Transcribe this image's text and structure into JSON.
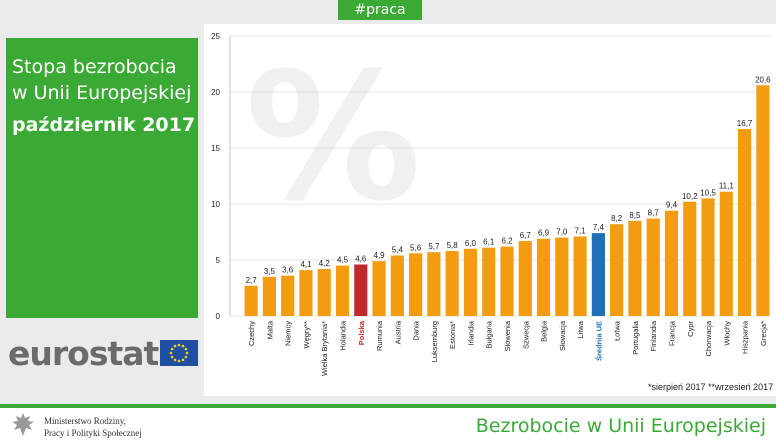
{
  "header": {
    "tag": "#praca"
  },
  "title": {
    "line1": "Stopa bezrobocia",
    "line2": "w Unii Europejskiej",
    "line3": "październik 2017"
  },
  "logo": {
    "text": "eurostat",
    "flag_icon": "eu-flag-icon"
  },
  "footnote": "*sierpień 2017 **wrzesień 2017",
  "footer": {
    "ministry_line1": "Ministerstwo Rodziny,",
    "ministry_line2": "Pracy i Polityki Społecznej",
    "title": "Bezrobocie w Unii Europejskiej"
  },
  "colors": {
    "default": "#f39c12",
    "poland": "#c0282d",
    "eu_average": "#1f6fb8",
    "green": "#3aaa35"
  },
  "chart_data": {
    "type": "bar",
    "ylim": [
      0,
      25
    ],
    "yticks": [
      0,
      5,
      10,
      15,
      20,
      25
    ],
    "grid": true,
    "categories": [
      "Czechy",
      "Malta",
      "Niemcy",
      "Węgry**",
      "Wielka Brytania*",
      "Holandia",
      "Polska",
      "Rumunia",
      "Austria",
      "Dania",
      "Luksemburg",
      "Estonia*",
      "Irlandia",
      "Bułgaria",
      "Słowenia",
      "Szwecja",
      "Belgia",
      "Słowacja",
      "Litwa",
      "Średnia UE",
      "Łotwa",
      "Portugalia",
      "Finlandia",
      "Francja",
      "Cypr",
      "Chorwacja",
      "Włochy",
      "Hiszpania",
      "Grecja*"
    ],
    "values": [
      2.7,
      3.5,
      3.6,
      4.1,
      4.2,
      4.5,
      4.6,
      4.9,
      5.4,
      5.6,
      5.7,
      5.8,
      6.0,
      6.1,
      6.2,
      6.7,
      6.9,
      7.0,
      7.1,
      7.4,
      8.2,
      8.5,
      8.7,
      9.4,
      10.2,
      10.5,
      11.1,
      16.7,
      20.6
    ],
    "value_labels": [
      "2,7",
      "3,5",
      "3,6",
      "4,1",
      "4,2",
      "4,5",
      "4,6",
      "4,9",
      "5,4",
      "5,6",
      "5,7",
      "5,8",
      "6,0",
      "6,1",
      "6,2",
      "6,7",
      "6,9",
      "7,0",
      "7,1",
      "7,4",
      "8,2",
      "8,5",
      "8,7",
      "9,4",
      "10,2",
      "10,5",
      "11,1",
      "16,7",
      "20,6"
    ],
    "highlight": {
      "Polska": "poland",
      "Średnia UE": "eu_average"
    }
  }
}
